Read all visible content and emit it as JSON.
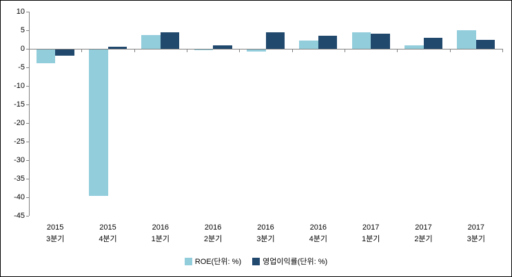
{
  "window": {
    "background": "#ffffff",
    "border_color": "#000000"
  },
  "chart_data": {
    "type": "bar",
    "title": "",
    "xlabel": "",
    "ylabel": "",
    "categories": [
      [
        "2015",
        "3분기"
      ],
      [
        "2015",
        "4분기"
      ],
      [
        "2016",
        "1분기"
      ],
      [
        "2016",
        "2분기"
      ],
      [
        "2016",
        "3분기"
      ],
      [
        "2016",
        "4분기"
      ],
      [
        "2017",
        "1분기"
      ],
      [
        "2017",
        "2분기"
      ],
      [
        "2017",
        "3분기"
      ]
    ],
    "series": [
      {
        "name": "ROE(단위: %)",
        "color": "#92CDDC",
        "values": [
          -3.8,
          -39.7,
          3.7,
          -0.3,
          -0.8,
          2.2,
          4.4,
          1.0,
          5.0
        ]
      },
      {
        "name": "영업이익률(단위: %)",
        "color": "#21496E",
        "values": [
          -1.8,
          0.6,
          4.5,
          0.9,
          4.4,
          3.5,
          4.0,
          3.0,
          2.4
        ]
      }
    ],
    "ylim": [
      -45,
      10
    ],
    "y_ticks": [
      10,
      5,
      0,
      -5,
      -10,
      -15,
      -20,
      -25,
      -30,
      -35,
      -40,
      -45
    ],
    "grid": false,
    "legend_position": "bottom",
    "axis_color": "#808080",
    "text_color": "#000000"
  }
}
